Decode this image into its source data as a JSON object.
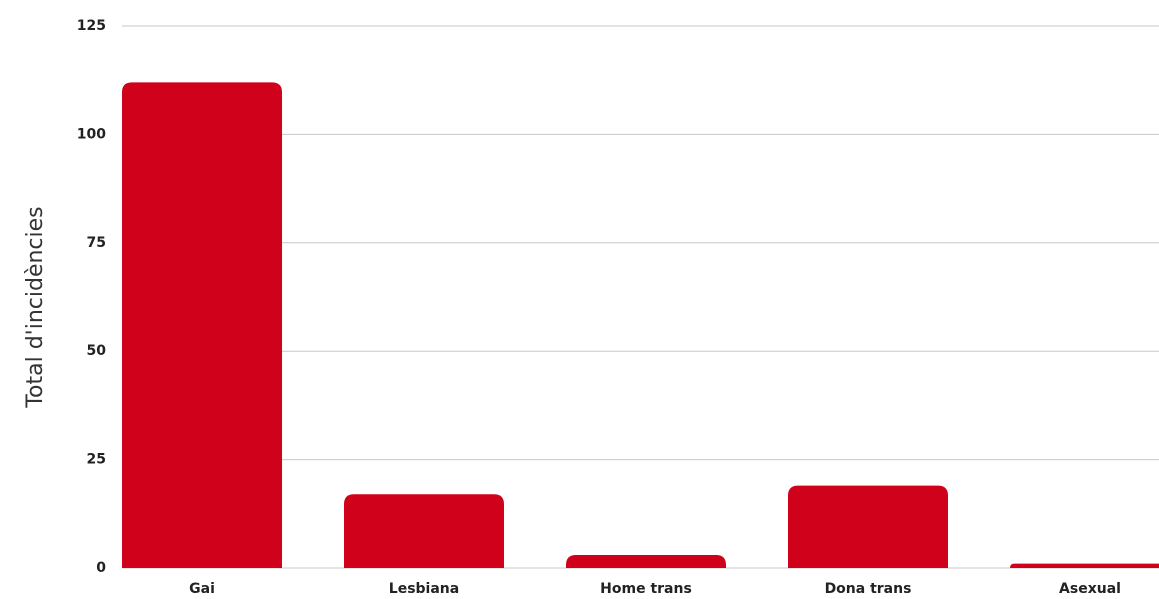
{
  "chart_data": {
    "type": "bar",
    "y_axis_label": "Total d'incidències",
    "categories": [
      "Gai",
      "Lesbiana",
      "Home trans",
      "Dona trans",
      "Asexual"
    ],
    "values": [
      112,
      17,
      3,
      19,
      1
    ],
    "color": "#d0021b",
    "ylim": [
      0,
      125
    ],
    "yticks": [
      0,
      25,
      50,
      75,
      100,
      125
    ],
    "grid": true
  }
}
